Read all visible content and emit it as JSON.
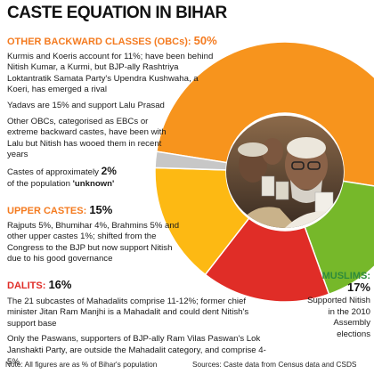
{
  "title": "CASTE EQUATION IN BIHAR",
  "chart_data": {
    "type": "pie",
    "variant": "donut",
    "slices": [
      {
        "label": "OTHER BACKWARD CLASSES (OBCs)",
        "value": 50,
        "color": "#f7941d"
      },
      {
        "label": "MUSLIMS",
        "value": 17,
        "color": "#76b82a"
      },
      {
        "label": "DALITS",
        "value": 16,
        "color": "#e02d27"
      },
      {
        "label": "UPPER CASTES",
        "value": 15,
        "color": "#fdb913"
      },
      {
        "label": "unknown",
        "value": 2,
        "color": "#c7c7c7"
      }
    ]
  },
  "obc": {
    "label": "OTHER BACKWARD CLASSES (OBCs):",
    "value": "50%",
    "lines": [
      "Kurmis and Koeris account for 11%; have been behind Nitish Kumar, a Kurmi, but BJP-ally Rashtriya Loktantratik Samata Party's Upendra Kushwaha, a Koeri, has emerged a rival",
      "Yadavs are 15% and support Lalu Prasad",
      "Other OBCs, categorised as EBCs or extreme backward castes, have been with Lalu but Nitish has wooed them in recent years"
    ]
  },
  "unknown": {
    "prefix": "Castes of approximately ",
    "value": "2%",
    "middle": "of the population ",
    "label": "'unknown'"
  },
  "upper": {
    "label": "UPPER CASTES:",
    "value": "15%",
    "text": "Rajputs 5%, Bhumihar 4%, Brahmins 5% and other upper castes 1%; shifted from the Congress to the BJP but now support Nitish due to his good governance"
  },
  "dalits": {
    "label": "DALITS:",
    "value": "16%",
    "lines": [
      "The 21 subcastes of Mahadalits comprise 11-12%; former chief minister Jitan Ram Manjhi is a Mahadalit and could dent Nitish's support base",
      "Only the Paswans, supporters of BJP-ally Ram Vilas Paswan's Lok Janshakti Party, are outside the Mahadalit category, and comprise 4-5%"
    ]
  },
  "muslims": {
    "label": "MUSLIMS:",
    "value": "17%",
    "text": "Supported Nitish in the 2010 Assembly elections"
  },
  "footer": {
    "note": "Note: All figures are as % of Bihar's population",
    "sources": "Sources: Caste data from Census data and CSDS"
  },
  "icons": {
    "photo": "crowd-photo-icon"
  }
}
